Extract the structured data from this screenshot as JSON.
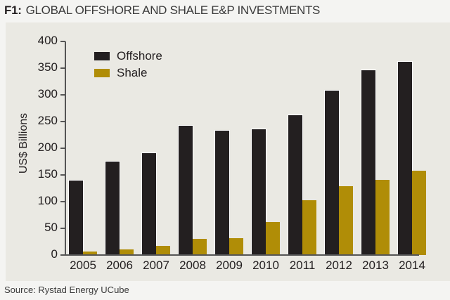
{
  "header": {
    "prefix": "F1:",
    "title": "GLOBAL OFFSHORE AND SHALE E&P INVESTMENTS"
  },
  "footer": {
    "source": "Source: Rystad Energy UCube"
  },
  "colors": {
    "offshore": "#231f20",
    "shale": "#b08d07",
    "panel": "#eae9e3",
    "background": "#f4f4f2"
  },
  "chart_data": {
    "type": "bar",
    "title": "F1: GLOBAL OFFSHORE AND SHALE E&P INVESTMENTS",
    "xlabel": "",
    "ylabel": "US$ Billions",
    "ylim": [
      0,
      400
    ],
    "yticks": [
      0,
      50,
      100,
      150,
      200,
      250,
      300,
      350,
      400
    ],
    "grid": false,
    "legend_position": "upper left",
    "categories": [
      "2005",
      "2006",
      "2007",
      "2008",
      "2009",
      "2010",
      "2011",
      "2012",
      "2013",
      "2014"
    ],
    "series": [
      {
        "name": "Offshore",
        "color": "#231f20",
        "values": [
          140,
          175,
          191,
          242,
          233,
          236,
          262,
          308,
          346,
          362
        ]
      },
      {
        "name": "Shale",
        "color": "#b08d07",
        "values": [
          6,
          11,
          17,
          30,
          31,
          62,
          103,
          129,
          141,
          158
        ]
      }
    ],
    "source": "Source: Rystad Energy UCube"
  }
}
